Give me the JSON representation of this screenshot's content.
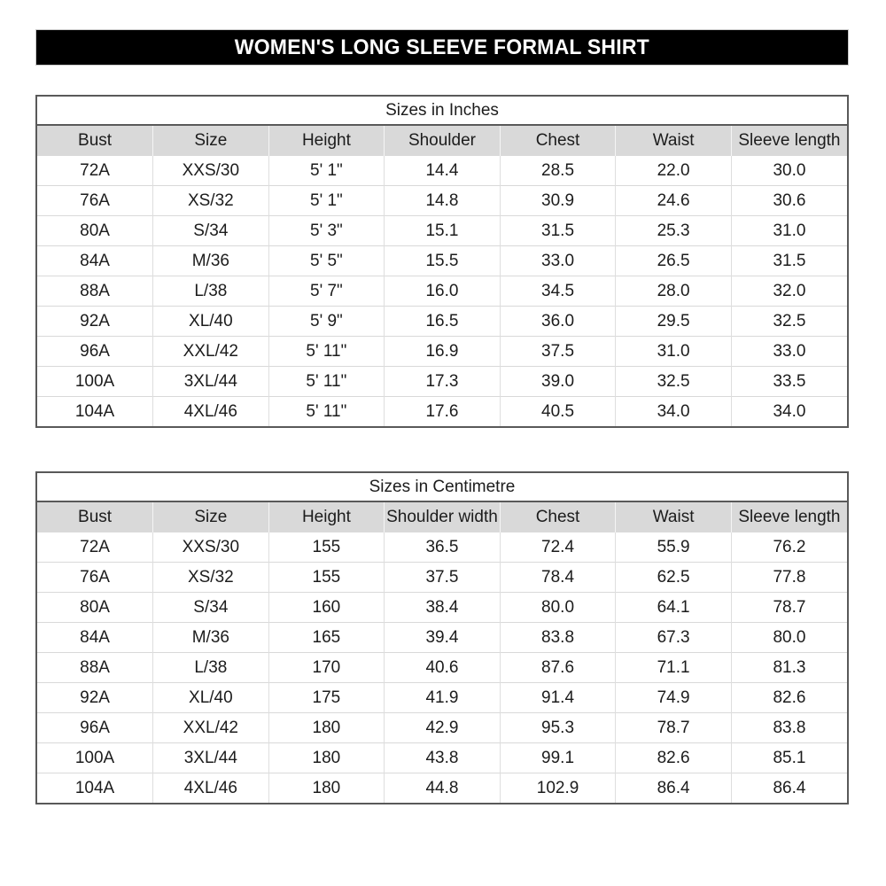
{
  "banner": {
    "title": "WOMEN'S LONG SLEEVE FORMAL SHIRT"
  },
  "colors": {
    "banner_bg": "#000000",
    "banner_text": "#ffffff",
    "header_row_bg": "#d9d9d9",
    "table_border": "#595959",
    "gridline": "#d9d9d9",
    "text": "#1c1c1c"
  },
  "tables": [
    {
      "id": "sizes-in-inches",
      "title": "Sizes in Inches",
      "columns": [
        "Bust",
        "Size",
        "Height",
        "Shoulder",
        "Chest",
        "Waist",
        "Sleeve length"
      ],
      "rows": [
        [
          "72A",
          "XXS/30",
          "5' 1\"",
          "14.4",
          "28.5",
          "22.0",
          "30.0"
        ],
        [
          "76A",
          "XS/32",
          "5' 1\"",
          "14.8",
          "30.9",
          "24.6",
          "30.6"
        ],
        [
          "80A",
          "S/34",
          "5' 3\"",
          "15.1",
          "31.5",
          "25.3",
          "31.0"
        ],
        [
          "84A",
          "M/36",
          "5' 5\"",
          "15.5",
          "33.0",
          "26.5",
          "31.5"
        ],
        [
          "88A",
          "L/38",
          "5' 7\"",
          "16.0",
          "34.5",
          "28.0",
          "32.0"
        ],
        [
          "92A",
          "XL/40",
          "5' 9\"",
          "16.5",
          "36.0",
          "29.5",
          "32.5"
        ],
        [
          "96A",
          "XXL/42",
          "5' 11\"",
          "16.9",
          "37.5",
          "31.0",
          "33.0"
        ],
        [
          "100A",
          "3XL/44",
          "5' 11\"",
          "17.3",
          "39.0",
          "32.5",
          "33.5"
        ],
        [
          "104A",
          "4XL/46",
          "5' 11\"",
          "17.6",
          "40.5",
          "34.0",
          "34.0"
        ]
      ]
    },
    {
      "id": "sizes-in-centimetre",
      "title": "Sizes in Centimetre",
      "columns": [
        "Bust",
        "Size",
        "Height",
        "Shoulder width",
        "Chest",
        "Waist",
        "Sleeve length"
      ],
      "rows": [
        [
          "72A",
          "XXS/30",
          "155",
          "36.5",
          "72.4",
          "55.9",
          "76.2"
        ],
        [
          "76A",
          "XS/32",
          "155",
          "37.5",
          "78.4",
          "62.5",
          "77.8"
        ],
        [
          "80A",
          "S/34",
          "160",
          "38.4",
          "80.0",
          "64.1",
          "78.7"
        ],
        [
          "84A",
          "M/36",
          "165",
          "39.4",
          "83.8",
          "67.3",
          "80.0"
        ],
        [
          "88A",
          "L/38",
          "170",
          "40.6",
          "87.6",
          "71.1",
          "81.3"
        ],
        [
          "92A",
          "XL/40",
          "175",
          "41.9",
          "91.4",
          "74.9",
          "82.6"
        ],
        [
          "96A",
          "XXL/42",
          "180",
          "42.9",
          "95.3",
          "78.7",
          "83.8"
        ],
        [
          "100A",
          "3XL/44",
          "180",
          "43.8",
          "99.1",
          "82.6",
          "85.1"
        ],
        [
          "104A",
          "4XL/46",
          "180",
          "44.8",
          "102.9",
          "86.4",
          "86.4"
        ]
      ]
    }
  ]
}
